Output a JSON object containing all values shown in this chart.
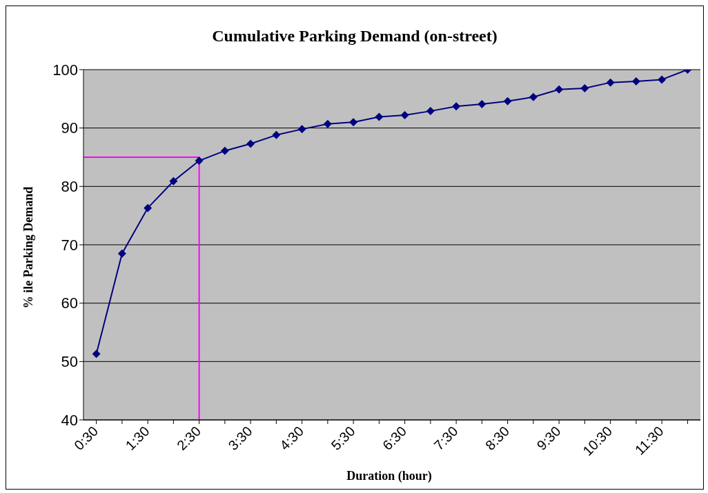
{
  "chart_data": {
    "type": "line",
    "title": "Cumulative Parking Demand (on-street)",
    "xlabel": "Duration (hour)",
    "ylabel": "% ile Parking Demand",
    "categories": [
      "0:30",
      null,
      "1:30",
      null,
      "2:30",
      null,
      "3:30",
      null,
      "4:30",
      null,
      "5:30",
      null,
      "6:30",
      null,
      "7:30",
      null,
      "8:30",
      null,
      "9:30",
      null,
      "10:30",
      null,
      "11:30",
      null
    ],
    "series": [
      {
        "color": "#000080",
        "values": [
          51.3,
          68.5,
          76.3,
          80.9,
          84.4,
          86.1,
          87.3,
          88.8,
          89.8,
          90.7,
          91.0,
          91.9,
          92.2,
          92.9,
          93.7,
          94.1,
          94.6,
          95.3,
          96.6,
          96.8,
          97.8,
          98.0,
          98.3,
          100
        ]
      }
    ],
    "ylim": [
      40,
      100
    ],
    "yticks": [
      40,
      50,
      60,
      70,
      80,
      90,
      100
    ],
    "grid": "y",
    "marker": "diamond",
    "line_style": "solid",
    "legend": false,
    "ref_lines": [
      {
        "axis": "y",
        "value": 85,
        "color": "#ff00ff",
        "line_style": "solid"
      },
      {
        "axis": "x",
        "value": "2:30",
        "color": "#ff00ff",
        "line_style": "solid"
      }
    ]
  }
}
